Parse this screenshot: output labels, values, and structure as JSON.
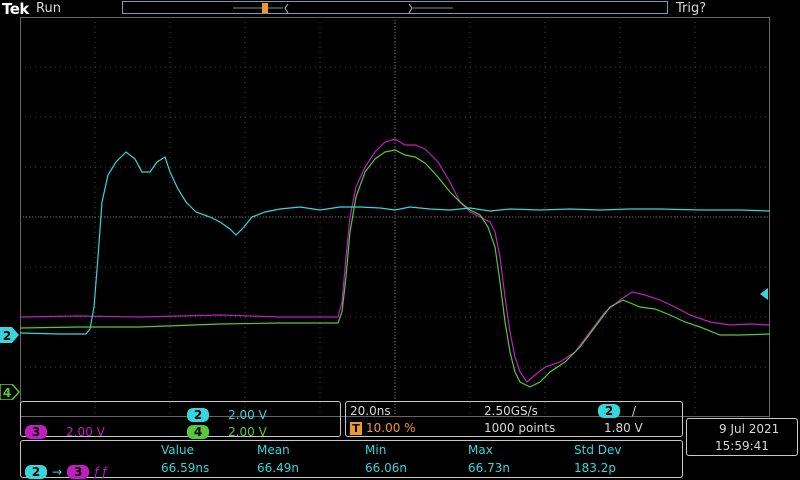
{
  "header": {
    "brand": "Tek",
    "status": "Run",
    "trigger_status": "Trig?"
  },
  "channels": {
    "ch2": {
      "label": "2",
      "scale": "2.00 V",
      "color": "#36d6dc"
    },
    "ch3": {
      "label": "3",
      "scale": "2.00 V",
      "color": "#c11ec1"
    },
    "ch4": {
      "label": "4",
      "scale": "2.00 V",
      "color": "#57c83a"
    }
  },
  "timebase": {
    "scale": "20.0ns",
    "trigger_pos": "10.00 %",
    "sample_rate": "2.50GS/s",
    "record_length": "1000 points"
  },
  "trigger": {
    "source": "2",
    "slope": "/",
    "level": "1.80 V",
    "marker": "T"
  },
  "datetime": {
    "date": "9 Jul  2021",
    "time": "15:59:41"
  },
  "measurement": {
    "source": "2",
    "target": "3",
    "edges": "ƒ ƒ",
    "headers": [
      "Value",
      "Mean",
      "Min",
      "Max",
      "Std Dev"
    ],
    "values": [
      "66.59ns",
      "66.49n",
      "66.06n",
      "66.73n",
      "183.2p"
    ]
  }
}
